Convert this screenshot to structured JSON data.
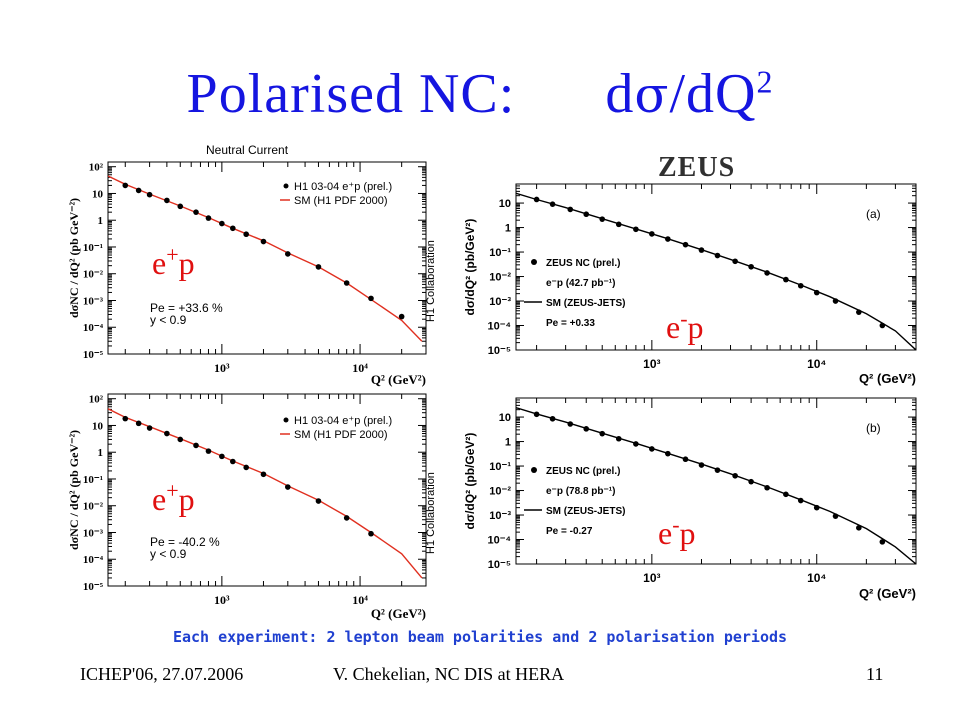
{
  "slide": {
    "title_prefix": "Polarised NC:",
    "title_d": "d",
    "title_sigma": "σ",
    "title_suffix": "/dQ",
    "title_sup": "2",
    "zeus_logo": "ZEUS",
    "note": "Each experiment:  2  lepton beam polarities and 2 polarisation periods",
    "footer_left": "ICHEP'06, 27.07.2006",
    "footer_center": "V. Chekelian,  NC DIS at HERA",
    "footer_right": "11",
    "colors": {
      "title": "#1515e0",
      "overlay": "#e01010",
      "note": "#2040d0",
      "h1_curve": "#e03020",
      "zeus_curve": "#000000"
    }
  },
  "chart_data": [
    {
      "type": "scatter",
      "id": "h1-top",
      "title": "Neutral Current",
      "xlabel": "Q² (GeV²)",
      "ylabel": "dσNC / dQ² (pb GeV⁻²)",
      "xscale": "log",
      "yscale": "log",
      "xlim": [
        150,
        30000
      ],
      "ylim": [
        1e-05,
        150
      ],
      "xticks": [
        1000,
        10000
      ],
      "xticklabels": [
        "10³",
        "10⁴"
      ],
      "yticks": [
        100,
        10,
        1,
        0.1,
        0.01,
        0.001,
        0.0001,
        1e-05
      ],
      "yticklabels": [
        "10²",
        "10",
        "1",
        "10⁻¹",
        "10⁻²",
        "10⁻³",
        "10⁻⁴",
        "10⁻⁵"
      ],
      "side_label": "H1 Collaboration",
      "overlay_label": "e+p",
      "legend": [
        "H1 03-04 e⁺p (prel.)",
        "SM (H1 PDF 2000)"
      ],
      "legend_position": "top-right",
      "annotations": [
        "Pe = +33.6 %",
        "y < 0.9"
      ],
      "series": [
        {
          "name": "H1 03-04 e⁺p (prel.)",
          "style": "points",
          "x": [
            200,
            250,
            300,
            400,
            500,
            650,
            800,
            1000,
            1200,
            1500,
            2000,
            3000,
            5000,
            8000,
            12000,
            20000
          ],
          "y": [
            20,
            13,
            9,
            5.5,
            3.3,
            2.0,
            1.2,
            0.75,
            0.5,
            0.3,
            0.16,
            0.055,
            0.018,
            0.0045,
            0.0012,
            0.00025
          ]
        },
        {
          "name": "SM (H1 PDF 2000)",
          "style": "line",
          "x": [
            150,
            200,
            300,
            500,
            800,
            1200,
            2000,
            3000,
            5000,
            8000,
            12000,
            20000,
            28000
          ],
          "y": [
            45,
            22,
            9.5,
            3.4,
            1.25,
            0.5,
            0.17,
            0.06,
            0.018,
            0.0045,
            0.0011,
            0.00018,
            3e-05
          ]
        }
      ]
    },
    {
      "type": "scatter",
      "id": "h1-bottom",
      "xlabel": "Q² (GeV²)",
      "ylabel": "dσNC / dQ² (pb GeV⁻²)",
      "xscale": "log",
      "yscale": "log",
      "xlim": [
        150,
        30000
      ],
      "ylim": [
        1e-05,
        150
      ],
      "xticks": [
        1000,
        10000
      ],
      "xticklabels": [
        "10³",
        "10⁴"
      ],
      "yticks": [
        100,
        10,
        1,
        0.1,
        0.01,
        0.001,
        0.0001,
        1e-05
      ],
      "yticklabels": [
        "10²",
        "10",
        "1",
        "10⁻¹",
        "10⁻²",
        "10⁻³",
        "10⁻⁴",
        "10⁻⁵"
      ],
      "side_label": "H1 Collaboration",
      "overlay_label": "e+p",
      "legend": [
        "H1 03-04 e⁺p (prel.)",
        "SM (H1 PDF 2000)"
      ],
      "legend_position": "top-right",
      "annotations": [
        "Pe = -40.2 %",
        "y < 0.9"
      ],
      "series": [
        {
          "name": "H1 03-04 e⁺p (prel.)",
          "style": "points",
          "x": [
            200,
            250,
            300,
            400,
            500,
            650,
            800,
            1000,
            1200,
            1500,
            2000,
            3000,
            5000,
            8000,
            12000
          ],
          "y": [
            18,
            12,
            8,
            5,
            3.0,
            1.8,
            1.1,
            0.7,
            0.45,
            0.27,
            0.15,
            0.05,
            0.015,
            0.0035,
            0.0009
          ]
        },
        {
          "name": "SM (H1 PDF 2000)",
          "style": "line",
          "x": [
            150,
            200,
            300,
            500,
            800,
            1200,
            2000,
            3000,
            5000,
            8000,
            12000,
            20000,
            28000
          ],
          "y": [
            42,
            20,
            9.0,
            3.2,
            1.2,
            0.47,
            0.16,
            0.055,
            0.016,
            0.004,
            0.001,
            0.00016,
            2e-05
          ]
        }
      ]
    },
    {
      "type": "scatter",
      "id": "zeus-a",
      "xlabel": "Q² (GeV²)",
      "ylabel": "dσ/dQ² (pb/GeV²)",
      "xscale": "log",
      "yscale": "log",
      "xlim": [
        150,
        40000
      ],
      "ylim": [
        1e-05,
        60
      ],
      "xticks": [
        1000,
        10000
      ],
      "xticklabels": [
        "10³",
        "10⁴"
      ],
      "yticks": [
        10,
        1,
        0.1,
        0.01,
        0.001,
        0.0001,
        1e-05
      ],
      "yticklabels": [
        "10",
        "1",
        "10⁻¹",
        "10⁻²",
        "10⁻³",
        "10⁻⁴",
        "10⁻⁵"
      ],
      "panel_label": "(a)",
      "overlay_label": "e-p",
      "legend": [
        "ZEUS NC (prel.)",
        "SM (ZEUS-JETS)"
      ],
      "legend_position": "bottom-left",
      "annotations": [
        "e⁻p (42.7 pb⁻¹)",
        "Pe = +0.33"
      ],
      "series": [
        {
          "name": "ZEUS NC (prel.)",
          "style": "points",
          "x": [
            200,
            250,
            320,
            400,
            500,
            630,
            800,
            1000,
            1250,
            1600,
            2000,
            2500,
            3200,
            4000,
            5000,
            6500,
            8000,
            10000,
            13000,
            18000,
            25000
          ],
          "y": [
            14,
            9,
            5.5,
            3.5,
            2.2,
            1.35,
            0.85,
            0.55,
            0.34,
            0.2,
            0.12,
            0.072,
            0.042,
            0.025,
            0.014,
            0.0075,
            0.0042,
            0.0022,
            0.001,
            0.00035,
            0.0001
          ]
        },
        {
          "name": "SM (ZEUS-JETS)",
          "style": "line",
          "x": [
            150,
            200,
            300,
            500,
            800,
            1200,
            2000,
            3000,
            5000,
            8000,
            12000,
            20000,
            30000,
            40000
          ],
          "y": [
            25,
            14,
            6.5,
            2.3,
            0.88,
            0.38,
            0.125,
            0.05,
            0.015,
            0.0045,
            0.0015,
            0.0003,
            6e-05,
            1e-05
          ]
        }
      ]
    },
    {
      "type": "scatter",
      "id": "zeus-b",
      "xlabel": "Q² (GeV²)",
      "ylabel": "dσ/dQ² (pb/GeV²)",
      "xscale": "log",
      "yscale": "log",
      "xlim": [
        150,
        40000
      ],
      "ylim": [
        1e-05,
        60
      ],
      "xticks": [
        1000,
        10000
      ],
      "xticklabels": [
        "10³",
        "10⁴"
      ],
      "yticks": [
        10,
        1,
        0.1,
        0.01,
        0.001,
        0.0001,
        1e-05
      ],
      "yticklabels": [
        "10",
        "1",
        "10⁻¹",
        "10⁻²",
        "10⁻³",
        "10⁻⁴",
        "10⁻⁵"
      ],
      "panel_label": "(b)",
      "overlay_label": "e-p",
      "legend": [
        "ZEUS NC (prel.)",
        "SM (ZEUS-JETS)"
      ],
      "legend_position": "bottom-left",
      "annotations": [
        "e⁻p (78.8 pb⁻¹)",
        "Pe = -0.27"
      ],
      "series": [
        {
          "name": "ZEUS NC (prel.)",
          "style": "points",
          "x": [
            200,
            250,
            320,
            400,
            500,
            630,
            800,
            1000,
            1250,
            1600,
            2000,
            2500,
            3200,
            4000,
            5000,
            6500,
            8000,
            10000,
            13000,
            18000,
            25000
          ],
          "y": [
            13,
            8.5,
            5.2,
            3.3,
            2.1,
            1.3,
            0.8,
            0.5,
            0.32,
            0.19,
            0.11,
            0.068,
            0.04,
            0.023,
            0.013,
            0.007,
            0.0039,
            0.002,
            0.0009,
            0.0003,
            8e-05
          ]
        },
        {
          "name": "SM (ZEUS-JETS)",
          "style": "line",
          "x": [
            150,
            200,
            300,
            500,
            800,
            1200,
            2000,
            3000,
            5000,
            8000,
            12000,
            20000,
            30000,
            40000
          ],
          "y": [
            24,
            13.5,
            6.2,
            2.2,
            0.85,
            0.36,
            0.12,
            0.048,
            0.014,
            0.0042,
            0.0014,
            0.00028,
            5e-05,
            1e-05
          ]
        }
      ]
    }
  ]
}
